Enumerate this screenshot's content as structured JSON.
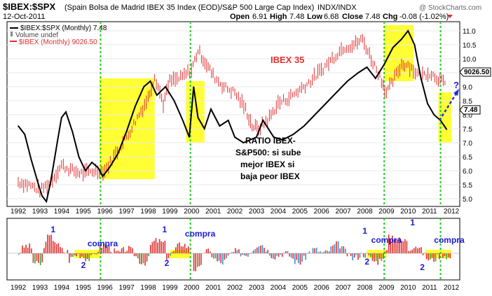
{
  "header": {
    "symbol": "$IBEX:$SPX",
    "description": "(Spain Bolsa de Madrid IBEX 35 Index (EOD)/S&P 500 Large Cap Index)",
    "exchange": "INDX/INDX",
    "watermark": "@ StockCharts.com",
    "date": "12-Oct-2011",
    "quote": {
      "open_label": "Open",
      "open": "6.91",
      "high_label": "High",
      "high": "7.48",
      "low_label": "Low",
      "low": "6.68",
      "close_label": "Close",
      "close": "7.48",
      "chg_label": "Chg",
      "chg": "-0.08 (-1.02%)"
    }
  },
  "legend": {
    "ratio": "$IBEX:$SPX (Monthly) 7.48",
    "volume": "Volume undef",
    "ibex": "$IBEX (Monthly) 9026.50"
  },
  "annotations": {
    "ibex_label": "IBEX 35",
    "ratio_text": [
      "RATIO IBEX-",
      "S&P500: si sube",
      "mejor IBEX si",
      "baja peor IBEX"
    ],
    "question": "?",
    "markers": [
      "1",
      "2",
      "compra"
    ]
  },
  "price_tags": {
    "ibex": "9026.50",
    "ratio": "7.48"
  },
  "colors": {
    "ratio": "#000000",
    "ibex": "#e03030",
    "highlight": "#ffff33",
    "vline": "#22cc22",
    "osc_pos": "#e03030",
    "osc_neg": "#3a8fd0",
    "osc_green": "#33aa33",
    "arrow": "#2233cc",
    "marker_text": "#1a1ad8"
  },
  "chart_data": [
    {
      "type": "line",
      "x_years": [
        "1992",
        "1993",
        "1994",
        "1995",
        "1996",
        "1997",
        "1998",
        "1999",
        "2000",
        "2001",
        "2002",
        "2003",
        "2004",
        "2005",
        "2006",
        "2007",
        "2008",
        "2009",
        "2010",
        "2011",
        "2012"
      ],
      "ylim": [
        4.8,
        11.2
      ],
      "y_ticks": [
        "5.0",
        "5.5",
        "6.0",
        "6.5",
        "7.0",
        "7.5",
        "8.0",
        "8.5",
        "9.0",
        "9.5",
        "10.0",
        "10.5",
        "11.0"
      ],
      "series": [
        {
          "name": "$IBEX:$SPX (Monthly)",
          "points": [
            [
              1992.0,
              7.6
            ],
            [
              1992.3,
              7.3
            ],
            [
              1992.6,
              6.4
            ],
            [
              1992.9,
              5.6
            ],
            [
              1993.1,
              5.1
            ],
            [
              1993.3,
              4.9
            ],
            [
              1993.5,
              5.6
            ],
            [
              1993.8,
              7.0
            ],
            [
              1994.0,
              7.9
            ],
            [
              1994.2,
              8.1
            ],
            [
              1994.5,
              7.4
            ],
            [
              1994.8,
              6.5
            ],
            [
              1995.1,
              6.0
            ],
            [
              1995.4,
              6.3
            ],
            [
              1995.7,
              6.1
            ],
            [
              1995.9,
              5.8
            ],
            [
              1996.2,
              6.1
            ],
            [
              1996.6,
              6.6
            ],
            [
              1997.0,
              7.4
            ],
            [
              1997.4,
              8.3
            ],
            [
              1997.8,
              9.0
            ],
            [
              1998.1,
              9.2
            ],
            [
              1998.4,
              8.7
            ],
            [
              1998.8,
              9.0
            ],
            [
              1999.2,
              8.5
            ],
            [
              1999.6,
              7.8
            ],
            [
              1999.9,
              7.2
            ],
            [
              2000.1,
              9.0
            ],
            [
              2000.3,
              7.9
            ],
            [
              2000.6,
              7.5
            ],
            [
              2000.9,
              8.2
            ],
            [
              2001.3,
              7.6
            ],
            [
              2001.7,
              7.8
            ],
            [
              2002.0,
              7.2
            ],
            [
              2002.4,
              7.0
            ],
            [
              2002.7,
              7.1
            ],
            [
              2003.0,
              7.2
            ],
            [
              2003.3,
              7.8
            ],
            [
              2003.8,
              7.2
            ],
            [
              2004.2,
              7.1
            ],
            [
              2004.7,
              7.3
            ],
            [
              2005.2,
              7.6
            ],
            [
              2005.7,
              8.0
            ],
            [
              2006.2,
              8.4
            ],
            [
              2006.7,
              8.8
            ],
            [
              2007.2,
              9.2
            ],
            [
              2007.7,
              9.5
            ],
            [
              2008.1,
              9.7
            ],
            [
              2008.5,
              9.3
            ],
            [
              2008.9,
              9.8
            ],
            [
              2009.3,
              10.4
            ],
            [
              2009.7,
              10.7
            ],
            [
              2010.0,
              11.0
            ],
            [
              2010.3,
              10.5
            ],
            [
              2010.6,
              9.3
            ],
            [
              2010.9,
              8.4
            ],
            [
              2011.2,
              8.0
            ],
            [
              2011.5,
              7.8
            ],
            [
              2011.78,
              7.48
            ]
          ]
        },
        {
          "name": "$IBEX (Monthly)",
          "points": [
            [
              1992.0,
              5.6
            ],
            [
              1992.5,
              5.5
            ],
            [
              1993.0,
              5.3
            ],
            [
              1993.5,
              5.6
            ],
            [
              1994.0,
              6.2
            ],
            [
              1994.5,
              6.0
            ],
            [
              1995.0,
              5.9
            ],
            [
              1995.5,
              6.0
            ],
            [
              1996.0,
              6.0
            ],
            [
              1996.5,
              6.6
            ],
            [
              1997.0,
              7.2
            ],
            [
              1997.5,
              7.9
            ],
            [
              1998.0,
              8.6
            ],
            [
              1998.3,
              9.4
            ],
            [
              1998.7,
              8.4
            ],
            [
              1999.0,
              9.2
            ],
            [
              1999.5,
              9.3
            ],
            [
              2000.0,
              9.6
            ],
            [
              2000.3,
              10.3
            ],
            [
              2000.7,
              9.8
            ],
            [
              2001.0,
              9.4
            ],
            [
              2001.5,
              9.0
            ],
            [
              2002.0,
              8.8
            ],
            [
              2002.5,
              8.2
            ],
            [
              2002.8,
              7.6
            ],
            [
              2003.1,
              7.5
            ],
            [
              2003.6,
              7.9
            ],
            [
              2004.0,
              8.4
            ],
            [
              2004.5,
              8.6
            ],
            [
              2005.0,
              8.9
            ],
            [
              2005.5,
              9.2
            ],
            [
              2006.0,
              9.6
            ],
            [
              2006.5,
              10.0
            ],
            [
              2007.0,
              10.4
            ],
            [
              2007.5,
              10.5
            ],
            [
              2007.9,
              10.7
            ],
            [
              2008.3,
              10.0
            ],
            [
              2008.7,
              9.4
            ],
            [
              2009.0,
              8.8
            ],
            [
              2009.3,
              9.2
            ],
            [
              2009.7,
              9.8
            ],
            [
              2010.0,
              9.8
            ],
            [
              2010.5,
              9.4
            ],
            [
              2011.0,
              9.5
            ],
            [
              2011.4,
              9.3
            ],
            [
              2011.78,
              9.03
            ]
          ]
        }
      ]
    },
    {
      "type": "bar",
      "x_years": [
        "1992",
        "1993",
        "1994",
        "1995",
        "1996",
        "1997",
        "1998",
        "1999",
        "2000",
        "2001",
        "2002",
        "2003",
        "2004",
        "2005",
        "2006",
        "2007",
        "2008",
        "2009",
        "2010",
        "2011",
        "2012"
      ],
      "annotation": "monthly oscillator histogram"
    }
  ]
}
